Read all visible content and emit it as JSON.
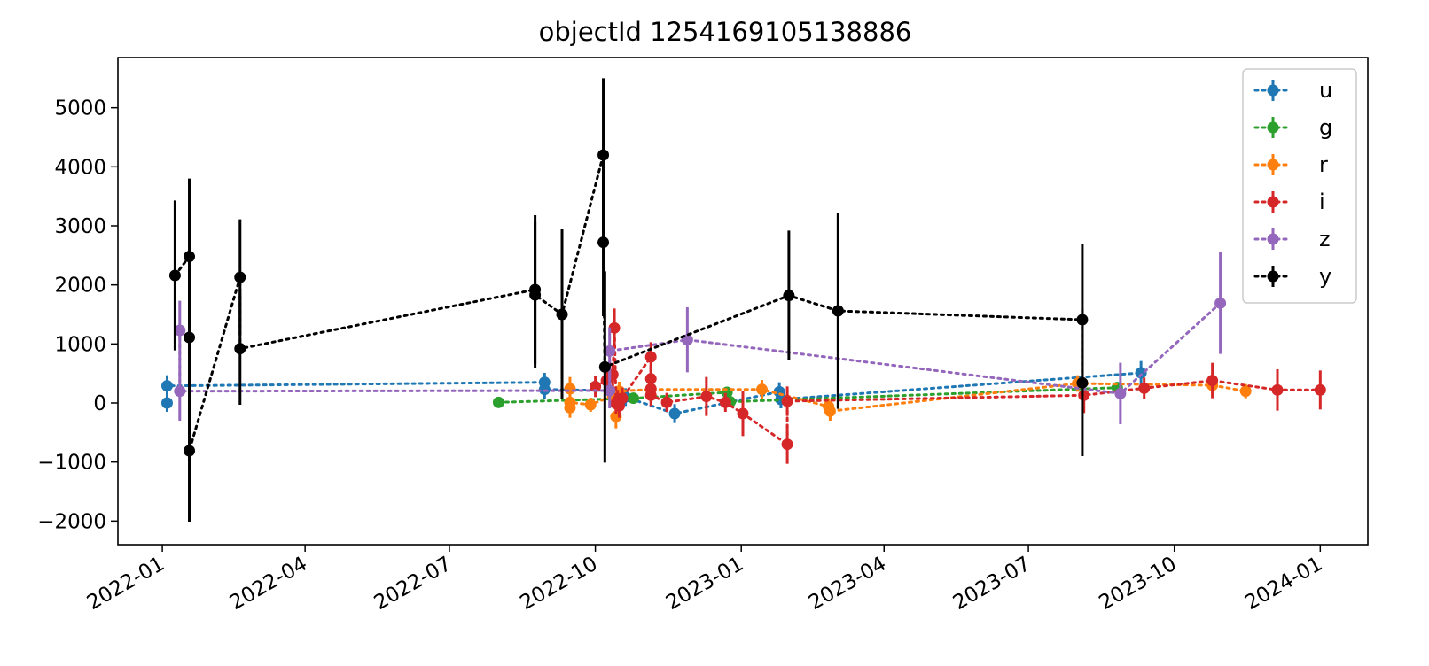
{
  "chart_data": {
    "type": "scatter",
    "title": "objectId 1254169105138886",
    "xlabel": "",
    "ylabel": "",
    "xlim": [
      "2021-12-04",
      "2024-01-31"
    ],
    "ylim": [
      -2400,
      5850
    ],
    "yticks": [
      -2000,
      -1000,
      0,
      1000,
      2000,
      3000,
      4000,
      5000
    ],
    "yticklabels": [
      "−2000",
      "−1000",
      "0",
      "1000",
      "2000",
      "3000",
      "4000",
      "5000"
    ],
    "xticks": [
      "2022-01-01",
      "2022-04-01",
      "2022-07-01",
      "2022-10-01",
      "2023-01-01",
      "2023-04-01",
      "2023-07-01",
      "2023-10-01",
      "2024-01-01"
    ],
    "xticklabels": [
      "2022-01",
      "2022-04",
      "2022-07",
      "2022-10",
      "2023-01",
      "2023-04",
      "2023-07",
      "2023-10",
      "2024-01"
    ],
    "legend_position": "top-right",
    "series": [
      {
        "name": "u",
        "color": "#1f77b4",
        "points": [
          {
            "x": "2022-01-04",
            "y": 0,
            "err": 150
          },
          {
            "x": "2022-01-04",
            "y": 290,
            "err": 180
          },
          {
            "x": "2022-08-30",
            "y": 350,
            "err": 160
          },
          {
            "x": "2022-08-30",
            "y": 230,
            "err": 170
          },
          {
            "x": "2022-10-10",
            "y": 210,
            "err": 150
          },
          {
            "x": "2022-10-20",
            "y": 100,
            "err": 150
          },
          {
            "x": "2022-11-20",
            "y": -180,
            "err": 160
          },
          {
            "x": "2023-01-25",
            "y": 190,
            "err": 160
          },
          {
            "x": "2023-01-26",
            "y": 60,
            "err": 150
          },
          {
            "x": "2023-09-10",
            "y": 510,
            "err": 200
          }
        ]
      },
      {
        "name": "g",
        "color": "#2ca02c",
        "points": [
          {
            "x": "2022-08-01",
            "y": 10,
            "err": 60
          },
          {
            "x": "2022-10-25",
            "y": 80,
            "err": 60
          },
          {
            "x": "2022-12-23",
            "y": 180,
            "err": 60
          },
          {
            "x": "2022-12-25",
            "y": 20,
            "err": 60
          },
          {
            "x": "2023-08-26",
            "y": 260,
            "err": 60
          }
        ]
      },
      {
        "name": "r",
        "color": "#ff7f0e",
        "points": [
          {
            "x": "2022-09-15",
            "y": 240,
            "err": 200
          },
          {
            "x": "2022-09-15",
            "y": -80,
            "err": 170
          },
          {
            "x": "2022-09-15",
            "y": 10,
            "err": 170
          },
          {
            "x": "2022-09-28",
            "y": -30,
            "err": 120
          },
          {
            "x": "2022-10-12",
            "y": 120,
            "err": 170
          },
          {
            "x": "2022-10-14",
            "y": -230,
            "err": 200
          },
          {
            "x": "2022-10-16",
            "y": 200,
            "err": 160
          },
          {
            "x": "2022-11-05",
            "y": 230,
            "err": 160
          },
          {
            "x": "2023-01-14",
            "y": 230,
            "err": 160
          },
          {
            "x": "2023-02-25",
            "y": -60,
            "err": 140
          },
          {
            "x": "2023-02-26",
            "y": -140,
            "err": 160
          },
          {
            "x": "2023-08-01",
            "y": 330,
            "err": 140
          },
          {
            "x": "2023-10-25",
            "y": 300,
            "err": 180
          },
          {
            "x": "2023-11-15",
            "y": 200,
            "err": 120
          }
        ]
      },
      {
        "name": "i",
        "color": "#d62728",
        "points": [
          {
            "x": "2022-10-01",
            "y": 280,
            "err": 180
          },
          {
            "x": "2022-10-08",
            "y": 380,
            "err": 180
          },
          {
            "x": "2022-10-12",
            "y": 480,
            "err": 200
          },
          {
            "x": "2022-10-13",
            "y": 1270,
            "err": 330
          },
          {
            "x": "2022-10-14",
            "y": -10,
            "err": 180
          },
          {
            "x": "2022-10-15",
            "y": 40,
            "err": 180
          },
          {
            "x": "2022-10-16",
            "y": -50,
            "err": 200
          },
          {
            "x": "2022-10-18",
            "y": 80,
            "err": 180
          },
          {
            "x": "2022-11-05",
            "y": 780,
            "err": 250
          },
          {
            "x": "2022-11-05",
            "y": 410,
            "err": 200
          },
          {
            "x": "2022-11-05",
            "y": 240,
            "err": 180
          },
          {
            "x": "2022-11-05",
            "y": 130,
            "err": 180
          },
          {
            "x": "2022-11-15",
            "y": 10,
            "err": 160
          },
          {
            "x": "2022-12-10",
            "y": 110,
            "err": 330
          },
          {
            "x": "2022-12-22",
            "y": 10,
            "err": 160
          },
          {
            "x": "2023-01-02",
            "y": -180,
            "err": 380
          },
          {
            "x": "2023-01-30",
            "y": -700,
            "err": 330
          },
          {
            "x": "2023-01-30",
            "y": 30,
            "err": 250
          },
          {
            "x": "2023-08-05",
            "y": 130,
            "err": 300
          },
          {
            "x": "2023-09-12",
            "y": 250,
            "err": 180
          },
          {
            "x": "2023-10-25",
            "y": 380,
            "err": 300
          },
          {
            "x": "2023-12-05",
            "y": 220,
            "err": 350
          },
          {
            "x": "2024-01-01",
            "y": 220,
            "err": 330
          }
        ]
      },
      {
        "name": "z",
        "color": "#9467bd",
        "points": [
          {
            "x": "2022-01-12",
            "y": 1230,
            "err": 500
          },
          {
            "x": "2022-01-12",
            "y": 200,
            "err": 500
          },
          {
            "x": "2022-10-10",
            "y": 210,
            "err": 300
          },
          {
            "x": "2022-10-10",
            "y": 880,
            "err": 400
          },
          {
            "x": "2022-11-28",
            "y": 1070,
            "err": 550
          },
          {
            "x": "2023-08-28",
            "y": 160,
            "err": 520
          },
          {
            "x": "2023-10-30",
            "y": 1690,
            "err": 860
          }
        ]
      },
      {
        "name": "y",
        "color": "#000000",
        "points": [
          {
            "x": "2022-01-09",
            "y": 2160,
            "err": 1270
          },
          {
            "x": "2022-01-18",
            "y": 2480,
            "err": 1320
          },
          {
            "x": "2022-01-18",
            "y": 1110,
            "err": 1300
          },
          {
            "x": "2022-01-18",
            "y": -810,
            "err": 1200
          },
          {
            "x": "2022-02-19",
            "y": 2130,
            "err": 980
          },
          {
            "x": "2022-02-19",
            "y": 920,
            "err": 950
          },
          {
            "x": "2022-08-24",
            "y": 1920,
            "err": 1260
          },
          {
            "x": "2022-08-24",
            "y": 1830,
            "err": 1240
          },
          {
            "x": "2022-09-10",
            "y": 1500,
            "err": 1440
          },
          {
            "x": "2022-10-06",
            "y": 4200,
            "err": 1300
          },
          {
            "x": "2022-10-06",
            "y": 2720,
            "err": 1250
          },
          {
            "x": "2022-10-07",
            "y": 610,
            "err": 1620
          },
          {
            "x": "2023-01-31",
            "y": 1820,
            "err": 1100
          },
          {
            "x": "2023-03-03",
            "y": 1560,
            "err": 1660
          },
          {
            "x": "2023-08-04",
            "y": 1410,
            "err": 1290
          },
          {
            "x": "2023-08-04",
            "y": 340,
            "err": 1240
          }
        ]
      }
    ]
  }
}
